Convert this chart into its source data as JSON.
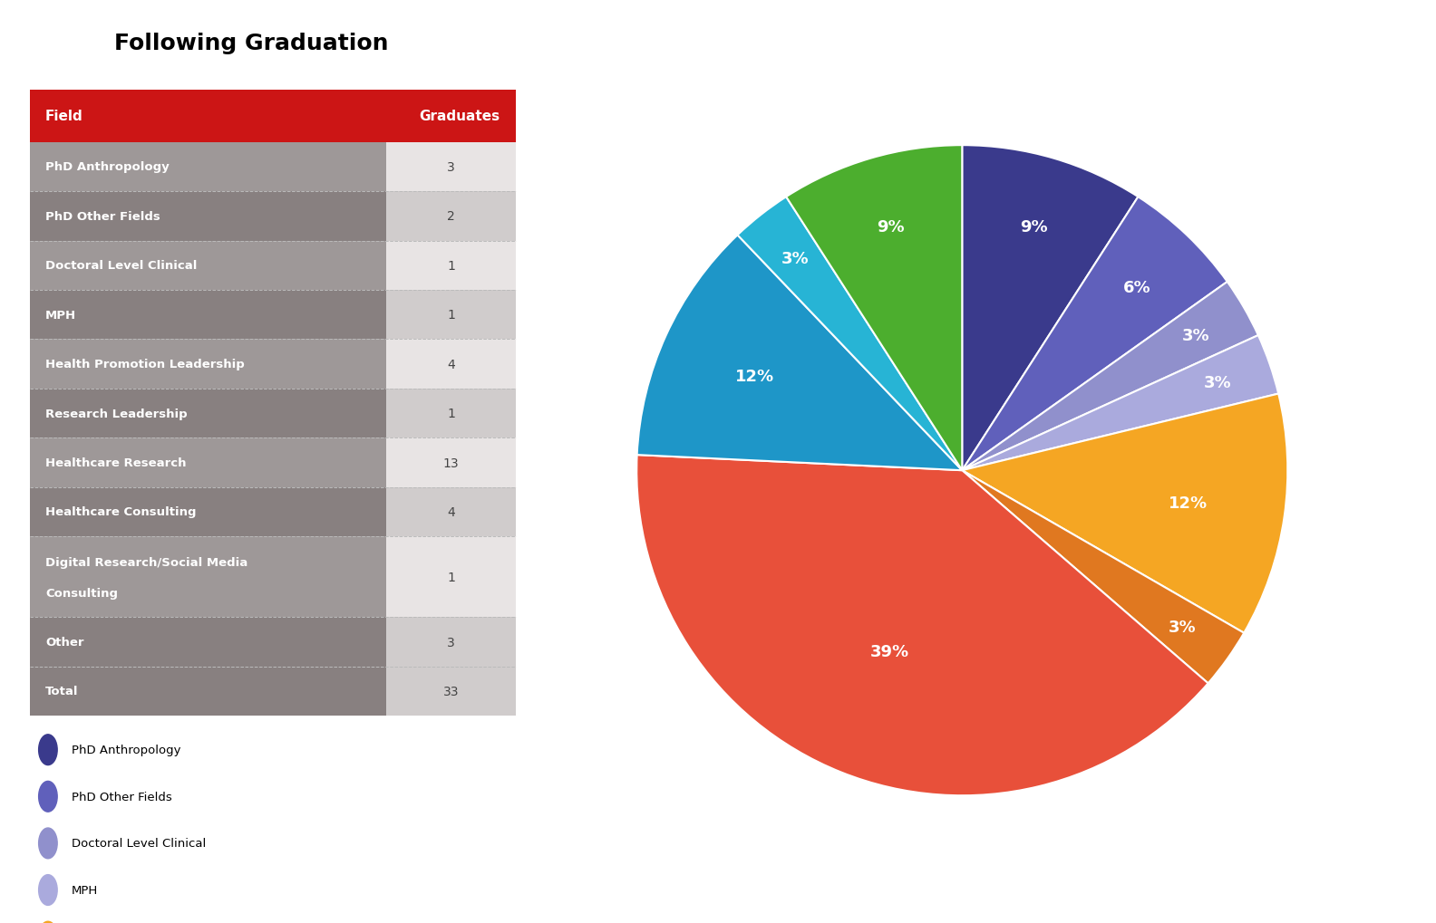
{
  "title": "Following Graduation",
  "categories": [
    "PhD Anthropology",
    "PhD Other Fields",
    "Doctoral Level Clinical",
    "MPH",
    "Health Promotion Leadership",
    "Research Leadership",
    "Healthcare Research",
    "Healthcare Consulting",
    "Digital Research/Social Media Consulting",
    "Other"
  ],
  "values": [
    3,
    2,
    1,
    1,
    4,
    1,
    13,
    4,
    1,
    3
  ],
  "total": 33,
  "colors": [
    "#3a3a8c",
    "#6060bb",
    "#9090cc",
    "#aaaadd",
    "#f5a623",
    "#e07820",
    "#e8503a",
    "#1e96c8",
    "#27b4d5",
    "#4cae2e"
  ],
  "header_color": "#cc1515",
  "table_bg_dark": "#888080",
  "table_bg_light": "#9e9898",
  "table_text_color": "#ffffff",
  "value_col_bg_dark": "#d0cccc",
  "value_col_bg_light": "#e8e4e4"
}
